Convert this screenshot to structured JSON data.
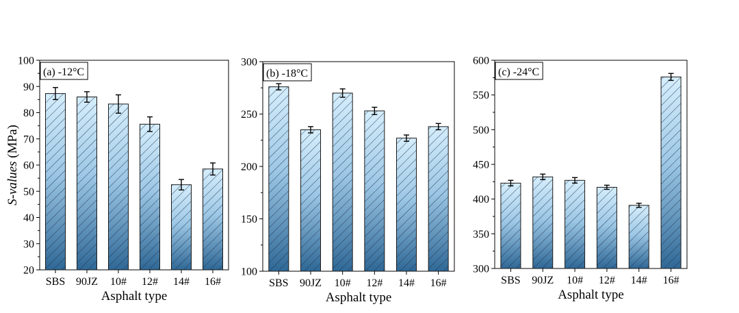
{
  "figure": {
    "ylabel_italic": "S-values",
    "ylabel_unit": " (MPa)"
  },
  "colors": {
    "bar_top": "#d6eefc",
    "bar_bottom": "#2f6896",
    "bar_stroke": "#1a1a1a",
    "hatch": "#1f3550"
  },
  "chart_data": [
    {
      "type": "bar",
      "panel_label": "(a) -12°C",
      "xlabel": "Asphalt type",
      "ylabel": "S-values (MPa)",
      "categories": [
        "SBS",
        "90JZ",
        "10#",
        "12#",
        "14#",
        "16#"
      ],
      "values": [
        87.3,
        86.0,
        83.3,
        75.6,
        52.5,
        58.5
      ],
      "errors": [
        2.3,
        2.0,
        3.5,
        2.8,
        2.0,
        2.3
      ],
      "ylim": [
        20,
        100
      ],
      "yticks": [
        20,
        30,
        40,
        50,
        60,
        70,
        80,
        90,
        100
      ],
      "fill": "vertical gradient with diagonal hatch",
      "grid": false,
      "legend": "none"
    },
    {
      "type": "bar",
      "panel_label": "(b) -18°C",
      "xlabel": "Asphalt type",
      "ylabel": "",
      "categories": [
        "SBS",
        "90JZ",
        "10#",
        "12#",
        "14#",
        "16#"
      ],
      "values": [
        276,
        235,
        270,
        253,
        227,
        238
      ],
      "errors": [
        3,
        3,
        4,
        3.5,
        3,
        3
      ],
      "ylim": [
        100,
        300
      ],
      "yticks": [
        100,
        150,
        200,
        250,
        300
      ],
      "fill": "vertical gradient with diagonal hatch",
      "grid": false,
      "legend": "none"
    },
    {
      "type": "bar",
      "panel_label": "(c) -24°C",
      "xlabel": "Asphalt type",
      "ylabel": "",
      "categories": [
        "SBS",
        "90JZ",
        "10#",
        "12#",
        "14#",
        "16#"
      ],
      "values": [
        423,
        432,
        427,
        417,
        391,
        576
      ],
      "errors": [
        4,
        4,
        4,
        3,
        3,
        5
      ],
      "ylim": [
        300,
        600
      ],
      "yticks": [
        300,
        350,
        400,
        450,
        500,
        550,
        600
      ],
      "fill": "vertical gradient with diagonal hatch",
      "grid": false,
      "legend": "none"
    }
  ]
}
